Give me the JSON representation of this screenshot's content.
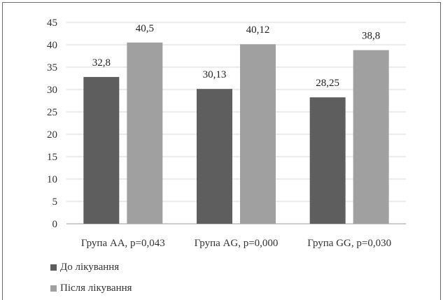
{
  "chart_data": {
    "type": "bar",
    "categories": [
      "Група АА, р=0,043",
      "Група AG, р=0,000",
      "Група GG, р=0,030"
    ],
    "series": [
      {
        "name": "До лікування",
        "values": [
          32.8,
          30.13,
          28.25
        ],
        "labels": [
          "32,8",
          "30,13",
          "28,25"
        ],
        "color": "#5e5e5e"
      },
      {
        "name": "Після лікування",
        "values": [
          40.5,
          40.12,
          38.8
        ],
        "labels": [
          "40,5",
          "40,12",
          "38,8"
        ],
        "color": "#a0a0a0"
      }
    ],
    "ylim": [
      0,
      45
    ],
    "yticks": [
      "0",
      "5",
      "10",
      "15",
      "20",
      "25",
      "30",
      "35",
      "40",
      "45"
    ],
    "grid": true,
    "legend_position": "bottom-left"
  }
}
